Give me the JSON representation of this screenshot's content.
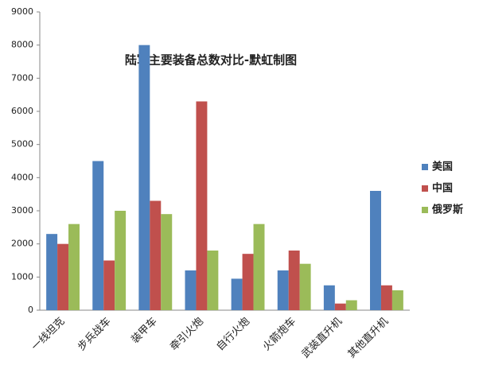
{
  "chart_data": {
    "type": "bar",
    "title": "陆军主要装备总数对比-默虹制图",
    "categories": [
      "一线坦克",
      "步兵战车",
      "装甲车",
      "牵引火炮",
      "自行火炮",
      "火箭炮车",
      "武装直升机",
      "其他直升机"
    ],
    "series": [
      {
        "name": "美国",
        "color": "#4f81bd",
        "values": [
          2300,
          4500,
          8000,
          1200,
          950,
          1200,
          750,
          3600
        ]
      },
      {
        "name": "中国",
        "color": "#c0504d",
        "values": [
          2000,
          1500,
          3300,
          6300,
          1700,
          1800,
          200,
          750
        ]
      },
      {
        "name": "俄罗斯",
        "color": "#9bbb59",
        "values": [
          2600,
          3000,
          2900,
          1800,
          2600,
          1400,
          300,
          600
        ]
      }
    ],
    "ylim": [
      0,
      9000
    ],
    "yticks": [
      0,
      1000,
      2000,
      3000,
      4000,
      5000,
      6000,
      7000,
      8000,
      9000
    ],
    "grid": false,
    "legend": "right"
  }
}
